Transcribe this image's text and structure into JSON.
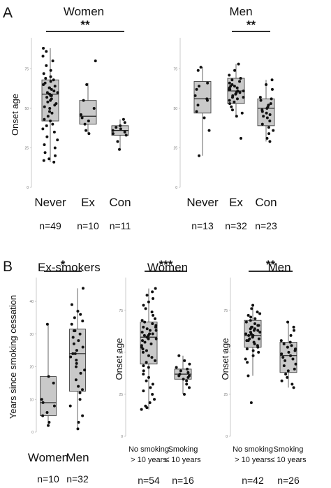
{
  "panel_labels": [
    "A",
    "B"
  ],
  "chart_data": [
    {
      "type": "box",
      "panel": "A",
      "title": "Women",
      "ylabel": "Onset age",
      "yticks": [
        0,
        25,
        50,
        75
      ],
      "ylim": [
        0,
        92
      ],
      "categories": [
        "Never",
        "Ex",
        "Con"
      ],
      "counts": [
        "n=49",
        "n=10",
        "n=11"
      ],
      "boxes": [
        {
          "q1": 42,
          "median": 59,
          "q3": 68,
          "min": 16,
          "max": 88
        },
        {
          "q1": 40,
          "median": 45,
          "q3": 55,
          "min": 34,
          "max": 66
        },
        {
          "q1": 33,
          "median": 36,
          "q3": 39,
          "min": 24,
          "max": 43
        }
      ],
      "points": [
        [
          16,
          17,
          18,
          20,
          22,
          25,
          27,
          30,
          32,
          35,
          37,
          39,
          40,
          42,
          43,
          45,
          47,
          48,
          50,
          51,
          52,
          53,
          54,
          55,
          56,
          57,
          58,
          58,
          59,
          60,
          60,
          61,
          62,
          63,
          63,
          64,
          65,
          66,
          67,
          68,
          69,
          70,
          72,
          74,
          77,
          80,
          83,
          86,
          88
        ],
        [
          34,
          36,
          40,
          42,
          44,
          46,
          50,
          55,
          65,
          80
        ],
        [
          24,
          29,
          33,
          34,
          35,
          36,
          37,
          38,
          39,
          41,
          43
        ]
      ],
      "significance": [
        {
          "from": 0,
          "to": 2,
          "label": "**"
        }
      ]
    },
    {
      "type": "box",
      "panel": "A",
      "title": "Men",
      "ylabel": "",
      "yticks": [
        0,
        25,
        50,
        75
      ],
      "ylim": [
        0,
        92
      ],
      "categories": [
        "Never",
        "Ex",
        "Con"
      ],
      "counts": [
        "n=13",
        "n=32",
        "n=23"
      ],
      "boxes": [
        {
          "q1": 47,
          "median": 56,
          "q3": 67,
          "min": 20,
          "max": 76
        },
        {
          "q1": 53,
          "median": 61,
          "q3": 69,
          "min": 45,
          "max": 78
        },
        {
          "q1": 39,
          "median": 50,
          "q3": 56,
          "min": 29,
          "max": 68
        }
      ],
      "points": [
        [
          20,
          36,
          44,
          48,
          52,
          55,
          56,
          58,
          62,
          64,
          66,
          74,
          76
        ],
        [
          31,
          45,
          47,
          49,
          51,
          53,
          54,
          55,
          56,
          57,
          57,
          58,
          59,
          59,
          60,
          60,
          61,
          61,
          62,
          62,
          63,
          63,
          64,
          64,
          65,
          66,
          67,
          68,
          69,
          71,
          74,
          78
        ],
        [
          29,
          31,
          34,
          36,
          38,
          40,
          42,
          44,
          45,
          46,
          47,
          48,
          49,
          50,
          51,
          52,
          53,
          55,
          56,
          57,
          62,
          65,
          68
        ]
      ],
      "significance": [
        {
          "from": 1,
          "to": 2,
          "label": "**"
        }
      ]
    },
    {
      "type": "box",
      "panel": "B",
      "title": "Ex-smokers",
      "ylabel": "Years since smoking cessation",
      "yticks": [
        0,
        10,
        20,
        30,
        40
      ],
      "ylim": [
        0,
        46
      ],
      "categories": [
        "Women",
        "Men"
      ],
      "counts": [
        "n=10",
        "n=32"
      ],
      "boxes": [
        {
          "q1": 5,
          "median": 9,
          "q3": 17,
          "min": 2,
          "max": 33
        },
        {
          "q1": 12.5,
          "median": 24,
          "q3": 31.5,
          "min": 1,
          "max": 44
        }
      ],
      "points": [
        [
          2,
          3,
          5,
          6,
          8,
          9,
          10,
          15,
          17,
          33
        ],
        [
          1,
          3,
          5,
          8,
          10,
          12,
          13,
          14,
          16,
          18,
          19,
          20,
          21,
          22,
          23,
          24,
          24,
          25,
          26,
          27,
          28,
          29,
          30,
          31,
          31,
          33,
          34,
          35,
          36,
          37,
          39,
          44
        ]
      ],
      "significance": [
        {
          "from": 0,
          "to": 1,
          "label": "*"
        }
      ]
    },
    {
      "type": "box",
      "panel": "B",
      "title": "Women",
      "ylabel": "Onset age",
      "yticks": [
        0,
        25,
        50,
        75
      ],
      "ylim": [
        0,
        92
      ],
      "categories": [
        [
          "No smoking",
          "> 10 years"
        ],
        [
          "Smoking",
          "≤ 10 years"
        ]
      ],
      "counts": [
        "n=54",
        "n=16"
      ],
      "boxes": [
        {
          "q1": 43,
          "median": 59,
          "q3": 68,
          "min": 16,
          "max": 88
        },
        {
          "q1": 34,
          "median": 37,
          "q3": 40,
          "min": 25,
          "max": 48
        }
      ],
      "points": [
        [
          16,
          17,
          18,
          20,
          22,
          25,
          27,
          29,
          31,
          33,
          35,
          37,
          39,
          41,
          42,
          44,
          45,
          47,
          48,
          50,
          51,
          52,
          53,
          54,
          55,
          56,
          57,
          58,
          58,
          59,
          60,
          60,
          61,
          61,
          62,
          63,
          63,
          64,
          65,
          65,
          66,
          67,
          68,
          69,
          70,
          72,
          74,
          76,
          78,
          80,
          82,
          84,
          86,
          88
        ],
        [
          25,
          29,
          31,
          33,
          34,
          35,
          36,
          36,
          37,
          38,
          39,
          40,
          41,
          43,
          45,
          48
        ]
      ],
      "significance": [
        {
          "from": 0,
          "to": 1,
          "label": "***"
        }
      ]
    },
    {
      "type": "box",
      "panel": "B",
      "title": "Men",
      "ylabel": "Onset age",
      "yticks": [
        0,
        25,
        50,
        75
      ],
      "ylim": [
        0,
        92
      ],
      "categories": [
        [
          "No smoking",
          "> 10 years"
        ],
        [
          "Smoking",
          "≤ 10 years"
        ]
      ],
      "counts": [
        "n=42",
        "n=26"
      ],
      "boxes": [
        {
          "q1": 53,
          "median": 60,
          "q3": 69,
          "min": 36,
          "max": 78
        },
        {
          "q1": 38,
          "median": 48,
          "q3": 56,
          "min": 29,
          "max": 68
        }
      ],
      "points": [
        [
          20,
          36,
          44,
          46,
          48,
          50,
          51,
          52,
          53,
          54,
          55,
          56,
          57,
          57,
          58,
          58,
          59,
          59,
          60,
          60,
          61,
          61,
          62,
          62,
          63,
          63,
          64,
          64,
          65,
          65,
          66,
          66,
          67,
          68,
          69,
          70,
          71,
          72,
          73,
          74,
          76,
          78
        ],
        [
          29,
          31,
          33,
          35,
          37,
          39,
          40,
          42,
          43,
          45,
          46,
          47,
          48,
          49,
          50,
          51,
          52,
          53,
          54,
          55,
          56,
          57,
          60,
          63,
          65,
          68
        ]
      ],
      "significance": [
        {
          "from": 0,
          "to": 1,
          "label": "**"
        }
      ]
    }
  ]
}
